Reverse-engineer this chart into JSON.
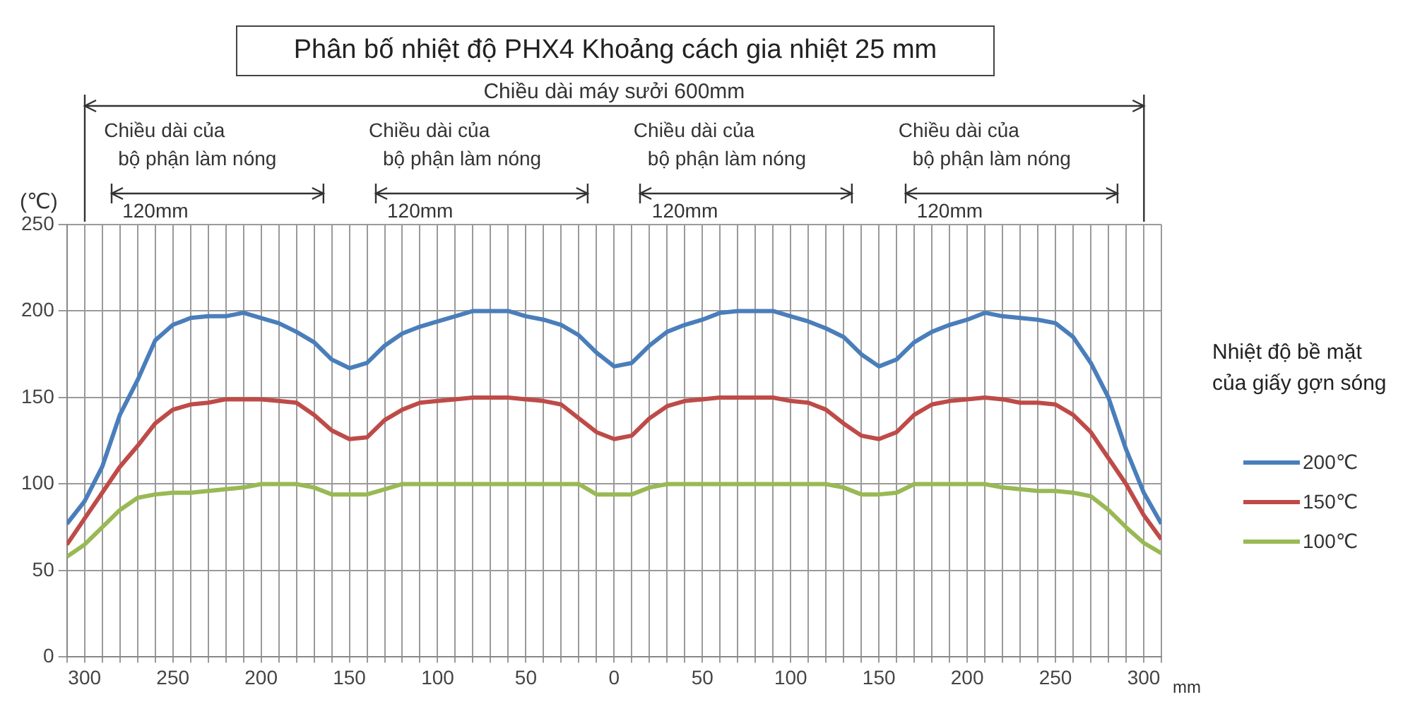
{
  "chart_data": {
    "type": "line",
    "title": "Phân bố nhiệt độ PHX4 Khoảng cách gia nhiệt 25 mm",
    "ylabel": "(℃)",
    "xlabel": "mm",
    "legend_title": "Nhiệt độ bề mặt của giấy gợn sóng",
    "legend": "right",
    "grid": true,
    "marker": "none",
    "line_style": "solid",
    "annotations": [
      "Chiều dài máy sưởi 600mm",
      "Chiều dài của\nbộ phận làm nóng\n120mm",
      "Chiều dài của\nbộ phận làm nóng\n120mm",
      "Chiều dài của\nbộ phận làm nóng\n120mm",
      "Chiều dài của\nbộ phận làm nóng\n120mm"
    ],
    "xlim": [
      -310,
      310
    ],
    "ylim": [
      0,
      250
    ],
    "yticks": [
      0,
      50,
      100,
      150,
      200,
      250
    ],
    "xticks": [
      {
        "value": -310,
        "label": null
      },
      {
        "value": -300,
        "label": "300"
      },
      {
        "value": -290,
        "label": null
      },
      {
        "value": -280,
        "label": null
      },
      {
        "value": -270,
        "label": null
      },
      {
        "value": -260,
        "label": null
      },
      {
        "value": -250,
        "label": "250"
      },
      {
        "value": -240,
        "label": null
      },
      {
        "value": -230,
        "label": null
      },
      {
        "value": -220,
        "label": null
      },
      {
        "value": -210,
        "label": null
      },
      {
        "value": -200,
        "label": "200"
      },
      {
        "value": -190,
        "label": null
      },
      {
        "value": -180,
        "label": null
      },
      {
        "value": -170,
        "label": null
      },
      {
        "value": -160,
        "label": null
      },
      {
        "value": -150,
        "label": "150"
      },
      {
        "value": -140,
        "label": null
      },
      {
        "value": -130,
        "label": null
      },
      {
        "value": -120,
        "label": null
      },
      {
        "value": -110,
        "label": null
      },
      {
        "value": -100,
        "label": "100"
      },
      {
        "value": -90,
        "label": null
      },
      {
        "value": -80,
        "label": null
      },
      {
        "value": -70,
        "label": null
      },
      {
        "value": -60,
        "label": null
      },
      {
        "value": -50,
        "label": "50"
      },
      {
        "value": -40,
        "label": null
      },
      {
        "value": -30,
        "label": null
      },
      {
        "value": -20,
        "label": null
      },
      {
        "value": -10,
        "label": null
      },
      0,
      {
        "value": 10,
        "label": null
      },
      {
        "value": 20,
        "label": null
      },
      {
        "value": 30,
        "label": null
      },
      {
        "value": 40,
        "label": null
      },
      50,
      {
        "value": 60,
        "label": null
      },
      {
        "value": 70,
        "label": null
      },
      {
        "value": 80,
        "label": null
      },
      {
        "value": 90,
        "label": null
      },
      100,
      {
        "value": 110,
        "label": null
      },
      {
        "value": 120,
        "label": null
      },
      {
        "value": 130,
        "label": null
      },
      {
        "value": 140,
        "label": null
      },
      150,
      {
        "value": 160,
        "label": null
      },
      {
        "value": 170,
        "label": null
      },
      {
        "value": 180,
        "label": null
      },
      {
        "value": 190,
        "label": null
      },
      200,
      {
        "value": 210,
        "label": null
      },
      {
        "value": 220,
        "label": null
      },
      {
        "value": 230,
        "label": null
      },
      {
        "value": 240,
        "label": null
      },
      250,
      {
        "value": 260,
        "label": null
      },
      {
        "value": 270,
        "label": null
      },
      {
        "value": 280,
        "label": null
      },
      {
        "value": 290,
        "label": null
      },
      300,
      {
        "value": 310,
        "label": null
      }
    ],
    "x": [
      -310,
      -300,
      -290,
      -280,
      -270,
      -260,
      -250,
      -240,
      -230,
      -220,
      -210,
      -200,
      -190,
      -180,
      -170,
      -160,
      -150,
      -140,
      -130,
      -120,
      -110,
      -100,
      -90,
      -80,
      -70,
      -60,
      -50,
      -40,
      -30,
      -20,
      -10,
      0,
      10,
      20,
      30,
      40,
      50,
      60,
      70,
      80,
      90,
      100,
      110,
      120,
      130,
      140,
      150,
      160,
      170,
      180,
      190,
      200,
      210,
      220,
      230,
      240,
      250,
      260,
      270,
      280,
      290,
      300,
      310
    ],
    "series": [
      {
        "name": "200℃",
        "color": "#4a7ebb",
        "values": [
          77,
          90,
          110,
          140,
          160,
          183,
          192,
          196,
          197,
          197,
          199,
          196,
          193,
          188,
          182,
          172,
          167,
          170,
          180,
          187,
          191,
          194,
          197,
          200,
          200,
          200,
          197,
          195,
          192,
          186,
          176,
          168,
          170,
          180,
          188,
          192,
          195,
          199,
          200,
          200,
          200,
          197,
          194,
          190,
          185,
          175,
          168,
          172,
          182,
          188,
          192,
          195,
          199,
          197,
          196,
          195,
          193,
          185,
          170,
          150,
          120,
          95,
          77
        ]
      },
      {
        "name": "150℃",
        "color": "#be4b48",
        "values": [
          65,
          80,
          95,
          110,
          122,
          135,
          143,
          146,
          147,
          149,
          149,
          149,
          148,
          147,
          140,
          131,
          126,
          127,
          137,
          143,
          147,
          148,
          149,
          150,
          150,
          150,
          149,
          148,
          146,
          138,
          130,
          126,
          128,
          138,
          145,
          148,
          149,
          150,
          150,
          150,
          150,
          148,
          147,
          143,
          135,
          128,
          126,
          130,
          140,
          146,
          148,
          149,
          150,
          149,
          147,
          147,
          146,
          140,
          130,
          115,
          100,
          82,
          68
        ]
      },
      {
        "name": "100℃",
        "color": "#98b954",
        "values": [
          58,
          65,
          75,
          85,
          92,
          94,
          95,
          95,
          96,
          97,
          98,
          100,
          100,
          100,
          98,
          94,
          94,
          94,
          97,
          100,
          100,
          100,
          100,
          100,
          100,
          100,
          100,
          100,
          100,
          100,
          94,
          94,
          94,
          98,
          100,
          100,
          100,
          100,
          100,
          100,
          100,
          100,
          100,
          100,
          98,
          94,
          94,
          95,
          100,
          100,
          100,
          100,
          100,
          98,
          97,
          96,
          96,
          95,
          93,
          85,
          75,
          66,
          60
        ]
      }
    ]
  }
}
